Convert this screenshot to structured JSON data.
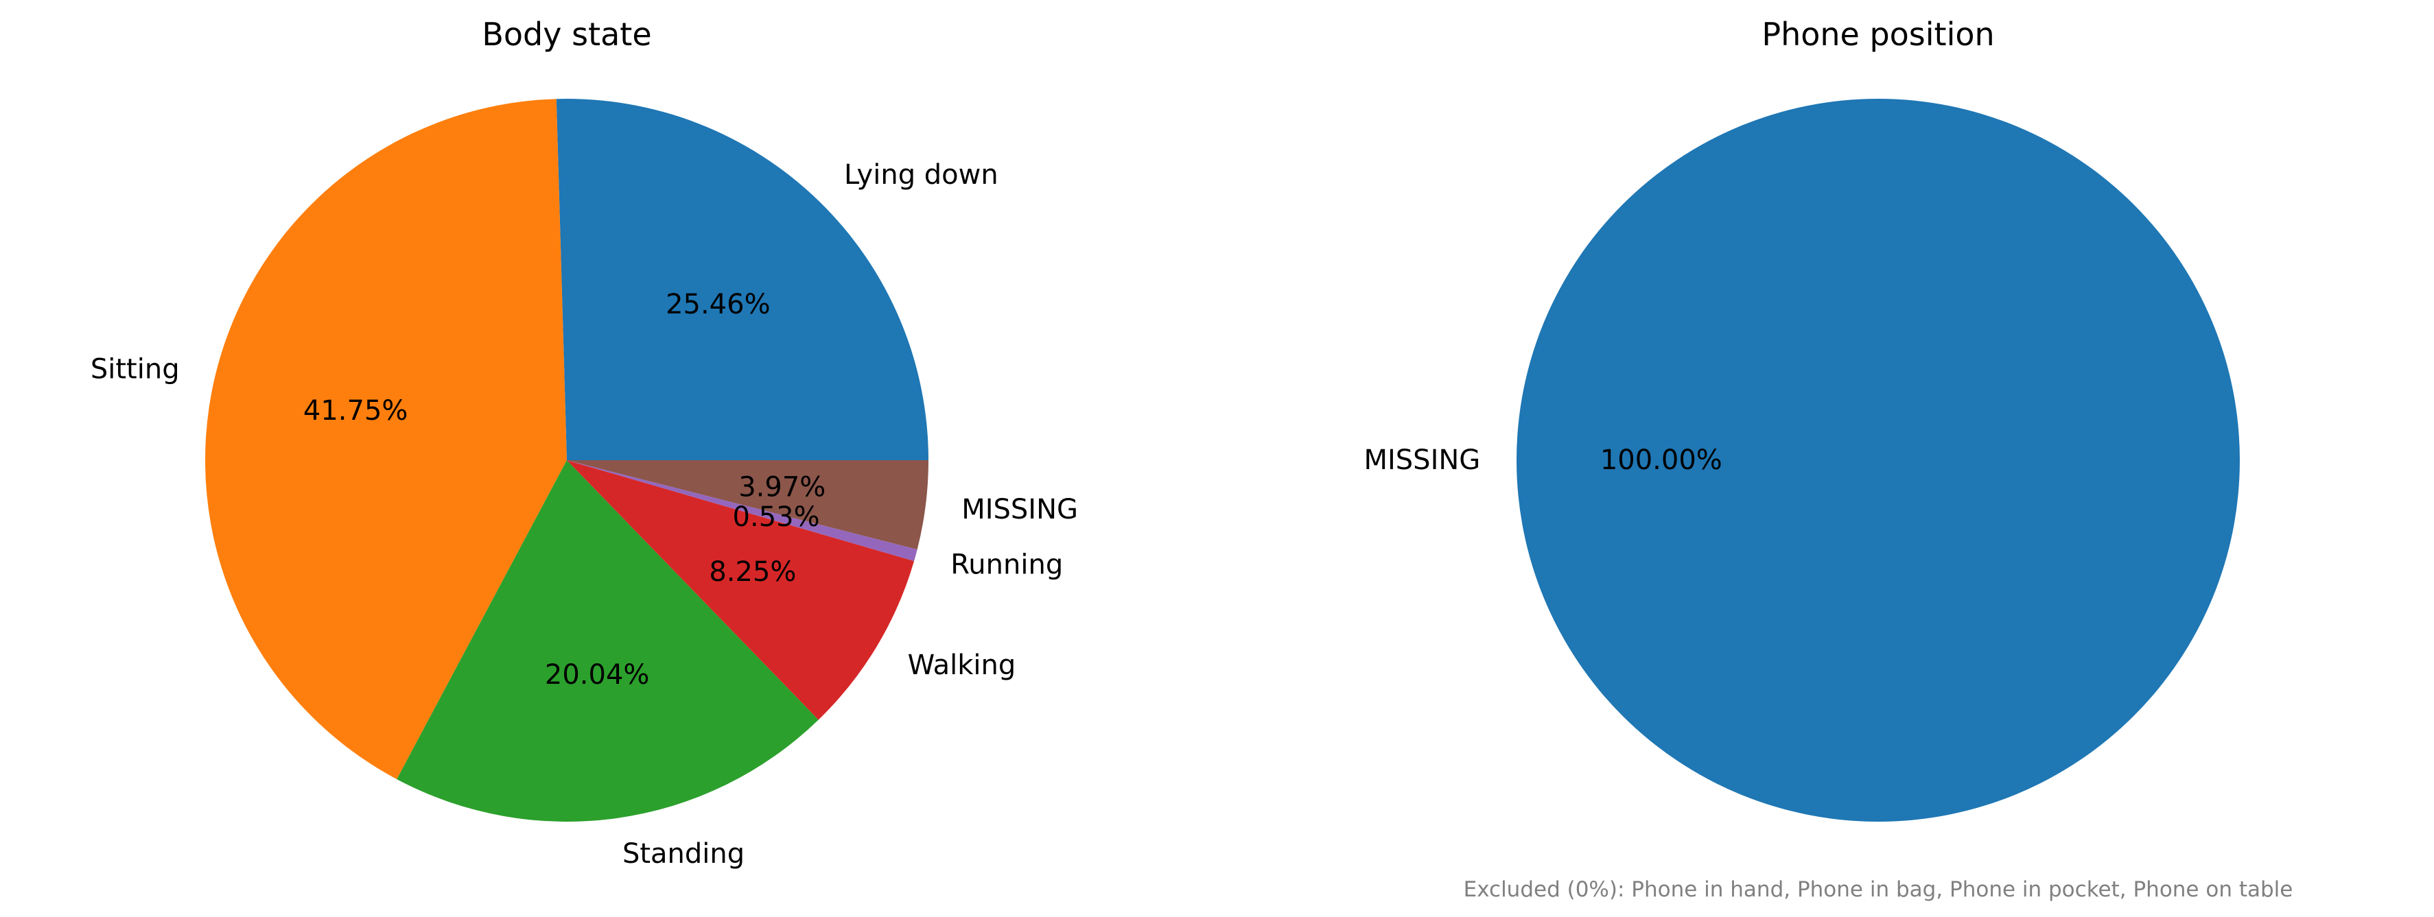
{
  "chart_data": [
    {
      "type": "pie",
      "title": "Body state",
      "categories": [
        "Lying down",
        "Sitting",
        "Standing",
        "Walking",
        "Running",
        "MISSING"
      ],
      "values": [
        25.46,
        41.75,
        20.04,
        8.25,
        0.53,
        3.97
      ],
      "value_labels": [
        "25.46%",
        "41.75%",
        "20.04%",
        "8.25%",
        "0.53%",
        "3.97%"
      ],
      "colors": [
        "#1f77b4",
        "#ff7f0e",
        "#2ca02c",
        "#d62728",
        "#9467bd",
        "#8c564b"
      ],
      "start_angle": 0,
      "direction": "counterclockwise"
    },
    {
      "type": "pie",
      "title": "Phone position",
      "categories": [
        "MISSING"
      ],
      "values": [
        100.0
      ],
      "value_labels": [
        "100.00%"
      ],
      "colors": [
        "#1f77b4"
      ],
      "start_angle": 0,
      "direction": "counterclockwise",
      "note": "Excluded (0%): Phone in hand, Phone in bag, Phone in pocket, Phone on table"
    }
  ]
}
